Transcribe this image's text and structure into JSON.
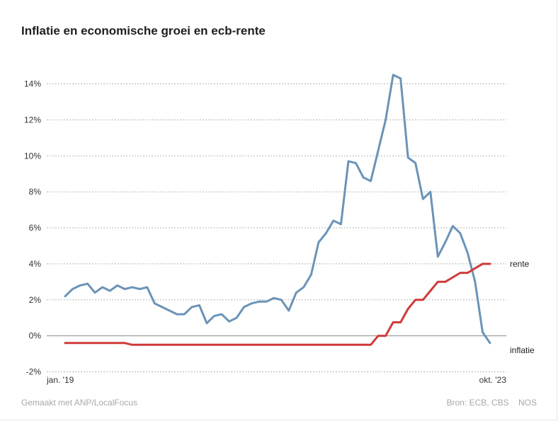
{
  "title": "Inflatie en economische groei en ecb-rente",
  "footer": {
    "credit": "Gemaakt met ANP/LocalFocus",
    "source": "Bron: ECB, CBS",
    "brand": "NOS"
  },
  "chart_data": {
    "type": "line",
    "title": "Inflatie en economische groei en ecb-rente",
    "xlabel": "",
    "ylabel": "",
    "x_tick_labels": [
      "jan. '19",
      "okt. '23"
    ],
    "y_ticks": [
      -2,
      0,
      2,
      4,
      6,
      8,
      10,
      12,
      14
    ],
    "y_tick_labels": [
      "-2%",
      "0%",
      "2%",
      "4%",
      "6%",
      "8%",
      "10%",
      "12%",
      "14%"
    ],
    "ylim": [
      -2,
      14.5
    ],
    "grid": true,
    "x_start": "2019-01",
    "x_end": "2023-10",
    "colors": {
      "inflatie": "#6b93b7",
      "rente": "#d03a3a",
      "zero_line": "#888888",
      "grid": "#b5b5b5"
    },
    "series": [
      {
        "name": "inflatie",
        "values": [
          2.2,
          2.6,
          2.8,
          2.9,
          2.4,
          2.7,
          2.5,
          2.8,
          2.6,
          2.7,
          2.6,
          2.7,
          1.8,
          1.6,
          1.4,
          1.2,
          1.2,
          1.6,
          1.7,
          0.7,
          1.1,
          1.2,
          0.8,
          1.0,
          1.6,
          1.8,
          1.9,
          1.9,
          2.1,
          2.0,
          1.4,
          2.4,
          2.7,
          3.4,
          5.2,
          5.7,
          6.4,
          6.2,
          9.7,
          9.6,
          8.8,
          8.6,
          10.3,
          12.0,
          14.5,
          14.3,
          9.9,
          9.6,
          7.6,
          8.0,
          4.4,
          5.2,
          6.1,
          5.7,
          4.6,
          3.0,
          0.2,
          -0.4
        ]
      },
      {
        "name": "rente",
        "values": [
          -0.4,
          -0.4,
          -0.4,
          -0.4,
          -0.4,
          -0.4,
          -0.4,
          -0.4,
          -0.4,
          -0.5,
          -0.5,
          -0.5,
          -0.5,
          -0.5,
          -0.5,
          -0.5,
          -0.5,
          -0.5,
          -0.5,
          -0.5,
          -0.5,
          -0.5,
          -0.5,
          -0.5,
          -0.5,
          -0.5,
          -0.5,
          -0.5,
          -0.5,
          -0.5,
          -0.5,
          -0.5,
          -0.5,
          -0.5,
          -0.5,
          -0.5,
          -0.5,
          -0.5,
          -0.5,
          -0.5,
          -0.5,
          -0.5,
          0.0,
          0.0,
          0.75,
          0.75,
          1.5,
          2.0,
          2.0,
          2.5,
          3.0,
          3.0,
          3.25,
          3.5,
          3.5,
          3.75,
          4.0,
          4.0
        ]
      }
    ]
  }
}
